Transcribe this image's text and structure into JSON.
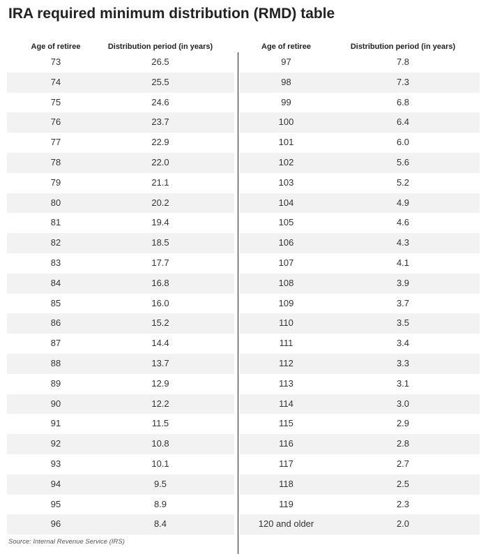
{
  "header": {
    "title": "IRA required minimum distribution (RMD) table"
  },
  "tables": [
    {
      "columns": [
        "Age of retiree",
        "Distribution period (in years)"
      ],
      "rows": [
        [
          "73",
          "26.5"
        ],
        [
          "74",
          "25.5"
        ],
        [
          "75",
          "24.6"
        ],
        [
          "76",
          "23.7"
        ],
        [
          "77",
          "22.9"
        ],
        [
          "78",
          "22.0"
        ],
        [
          "79",
          "21.1"
        ],
        [
          "80",
          "20.2"
        ],
        [
          "81",
          "19.4"
        ],
        [
          "82",
          "18.5"
        ],
        [
          "83",
          "17.7"
        ],
        [
          "84",
          "16.8"
        ],
        [
          "85",
          "16.0"
        ],
        [
          "86",
          "15.2"
        ],
        [
          "87",
          "14.4"
        ],
        [
          "88",
          "13.7"
        ],
        [
          "89",
          "12.9"
        ],
        [
          "90",
          "12.2"
        ],
        [
          "91",
          "11.5"
        ],
        [
          "92",
          "10.8"
        ],
        [
          "93",
          "10.1"
        ],
        [
          "94",
          "9.5"
        ],
        [
          "95",
          "8.9"
        ],
        [
          "96",
          "8.4"
        ]
      ]
    },
    {
      "columns": [
        "Age of retiree",
        "Distribution period (in years)"
      ],
      "rows": [
        [
          "97",
          "7.8"
        ],
        [
          "98",
          "7.3"
        ],
        [
          "99",
          "6.8"
        ],
        [
          "100",
          "6.4"
        ],
        [
          "101",
          "6.0"
        ],
        [
          "102",
          "5.6"
        ],
        [
          "103",
          "5.2"
        ],
        [
          "104",
          "4.9"
        ],
        [
          "105",
          "4.6"
        ],
        [
          "106",
          "4.3"
        ],
        [
          "107",
          "4.1"
        ],
        [
          "108",
          "3.9"
        ],
        [
          "109",
          "3.7"
        ],
        [
          "110",
          "3.5"
        ],
        [
          "111",
          "3.4"
        ],
        [
          "112",
          "3.3"
        ],
        [
          "113",
          "3.1"
        ],
        [
          "114",
          "3.0"
        ],
        [
          "115",
          "2.9"
        ],
        [
          "116",
          "2.8"
        ],
        [
          "117",
          "2.7"
        ],
        [
          "118",
          "2.5"
        ],
        [
          "119",
          "2.3"
        ],
        [
          "120 and older",
          "2.0"
        ]
      ]
    }
  ],
  "source": "Source: Internal Revenue Service (IRS)"
}
